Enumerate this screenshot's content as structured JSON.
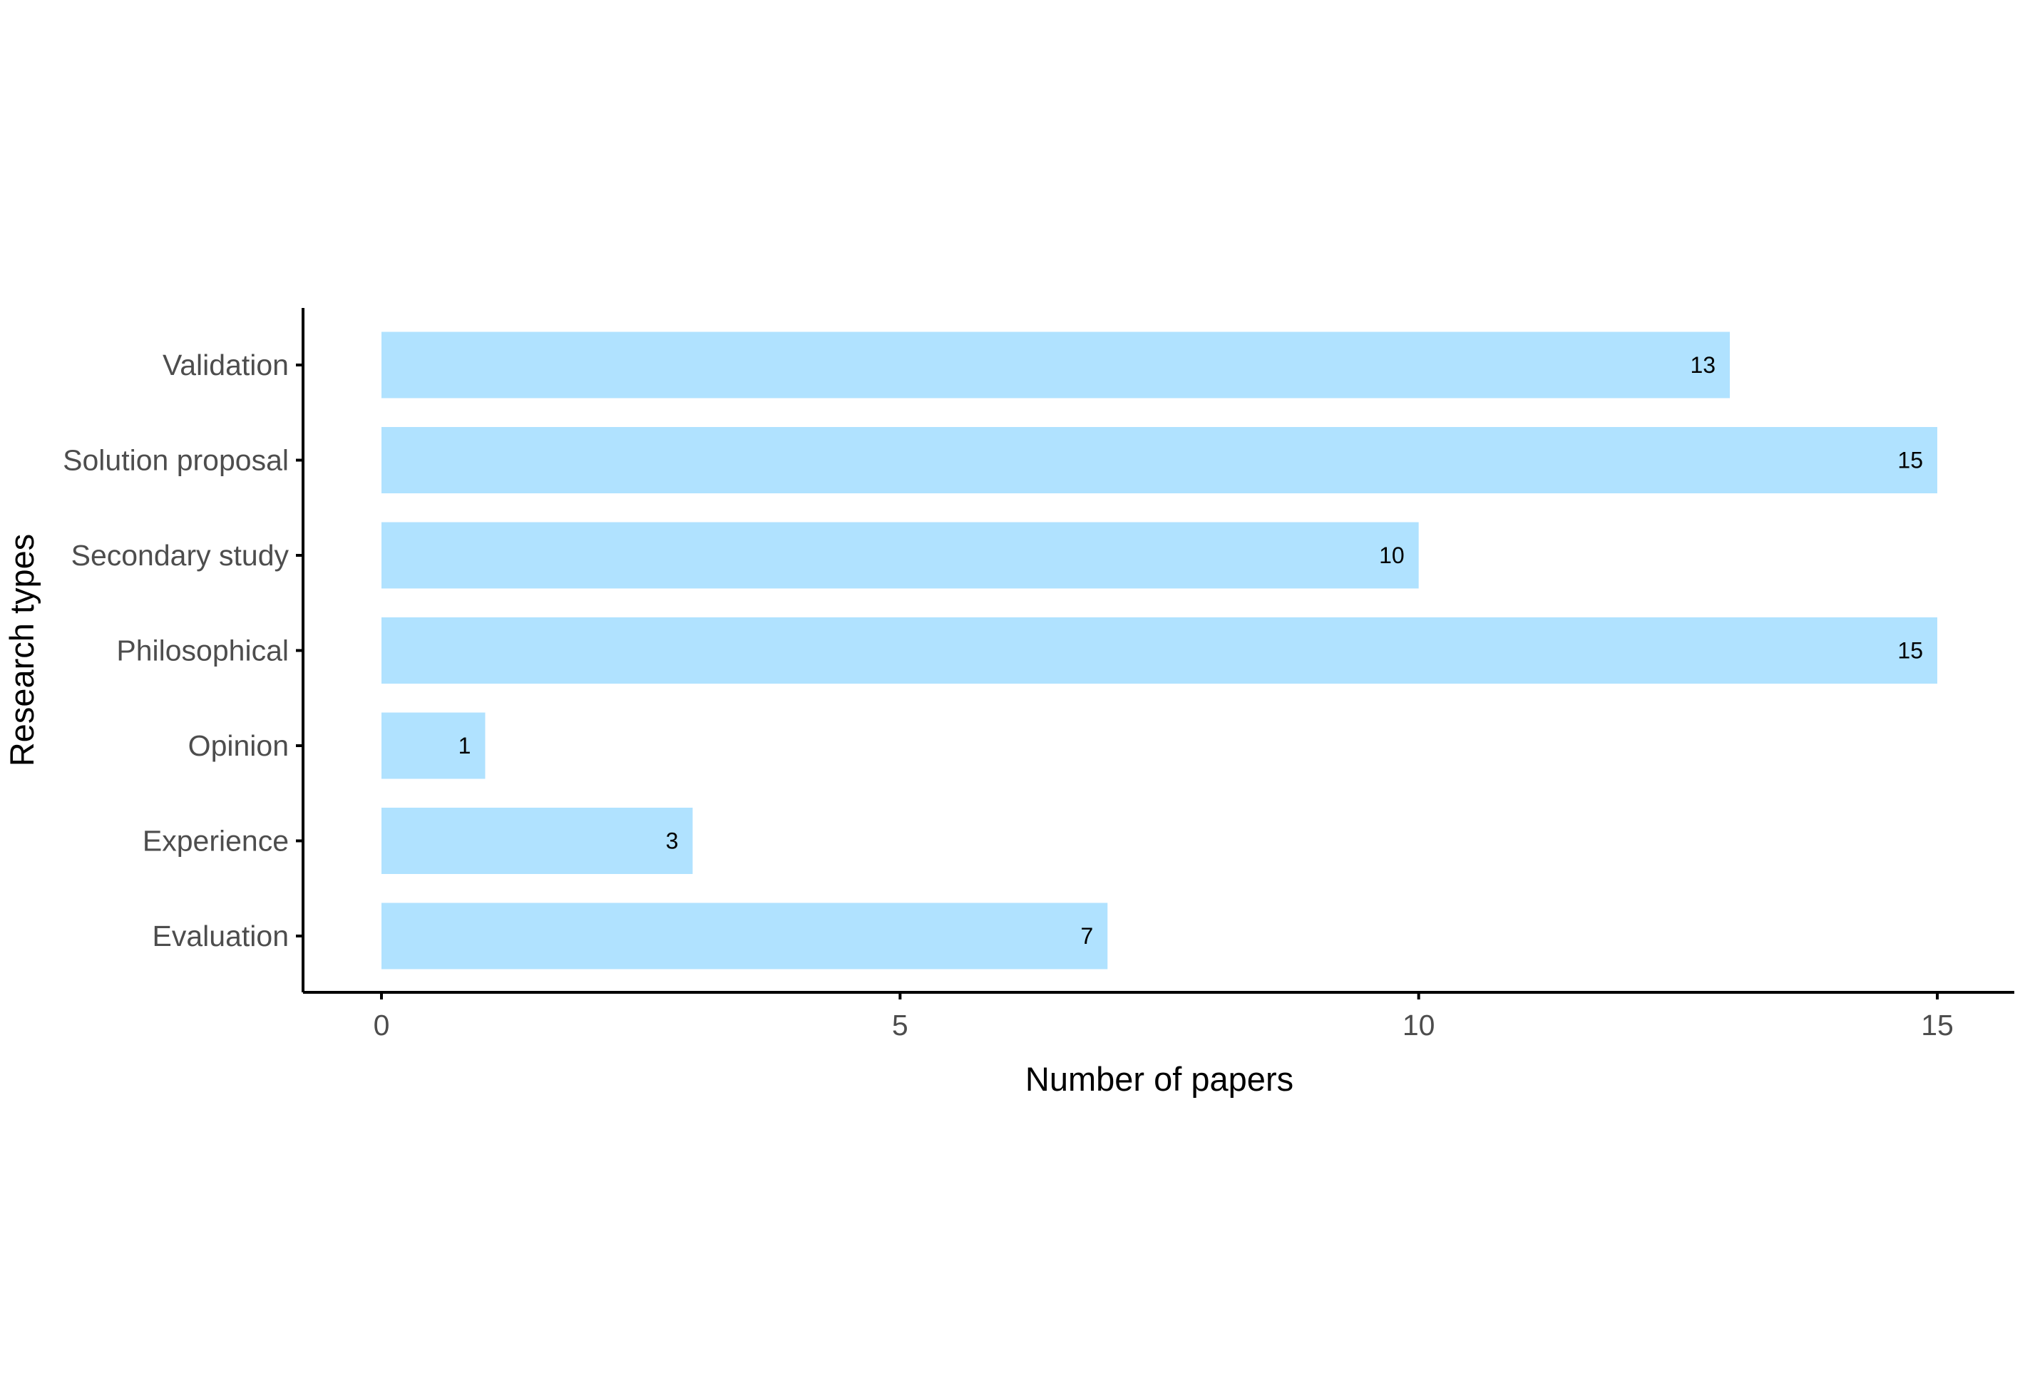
{
  "chart_data": {
    "type": "bar",
    "orientation": "horizontal",
    "categories": [
      "Validation",
      "Solution proposal",
      "Secondary study",
      "Philosophical",
      "Opinion",
      "Experience",
      "Evaluation"
    ],
    "values": [
      13,
      15,
      10,
      15,
      1,
      3,
      7
    ],
    "data_labels": [
      "13",
      "15",
      "10",
      "15",
      "1",
      "3",
      "7"
    ],
    "xlabel": "Number of papers",
    "ylabel": "Research types",
    "xlim": [
      0,
      15
    ],
    "xticks": [
      0,
      5,
      10,
      15
    ],
    "xtick_labels": [
      "0",
      "5",
      "10",
      "15"
    ],
    "grid": false,
    "bar_color": "#b0e2ff",
    "axis_color": "#000000"
  }
}
